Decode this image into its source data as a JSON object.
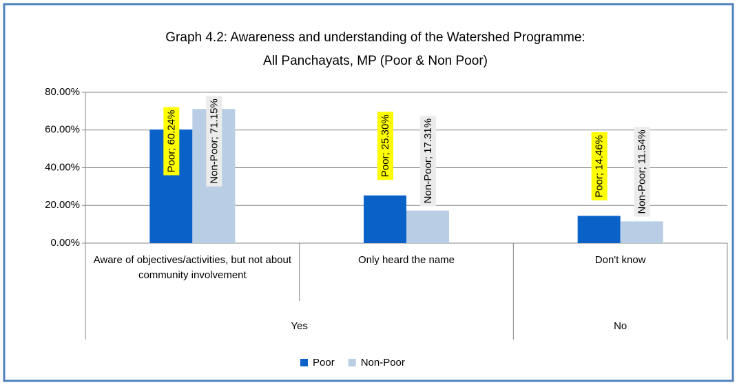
{
  "chart_data": {
    "type": "bar",
    "title": [
      "Graph 4.2: Awareness and understanding of the Watershed Programme:",
      "All Panchayats, MP (Poor & Non Poor)"
    ],
    "categories": [
      "Aware of objectives/activities, but not about community involvement",
      "Only heard the name",
      "Don't know"
    ],
    "groups": [
      {
        "name": "Yes",
        "span": 2
      },
      {
        "name": "No",
        "span": 1
      }
    ],
    "series": [
      {
        "name": "Poor",
        "color": "#0a62c9",
        "label_bg": "#ffff00",
        "values": [
          60.24,
          25.3,
          14.46
        ],
        "value_labels": [
          "Poor; 60.24%",
          "Poor; 25.30%",
          "Poor; 14.46%"
        ]
      },
      {
        "name": "Non-Poor",
        "color": "#b9cde5",
        "label_bg": "#ebebeb",
        "values": [
          71.15,
          17.31,
          11.54
        ],
        "value_labels": [
          "Non-Poor; 71.15%",
          "Non-Poor; 17.31%",
          "Non-Poor; 11.54%"
        ]
      }
    ],
    "ylim": [
      0,
      80
    ],
    "yticks": [
      {
        "value": 0,
        "label": "0.00%"
      },
      {
        "value": 20,
        "label": "20.00%"
      },
      {
        "value": 40,
        "label": "40.00%"
      },
      {
        "value": 60,
        "label": "60.00%"
      },
      {
        "value": 80,
        "label": "80.00%"
      }
    ],
    "grid": true,
    "legend": "bottom"
  }
}
